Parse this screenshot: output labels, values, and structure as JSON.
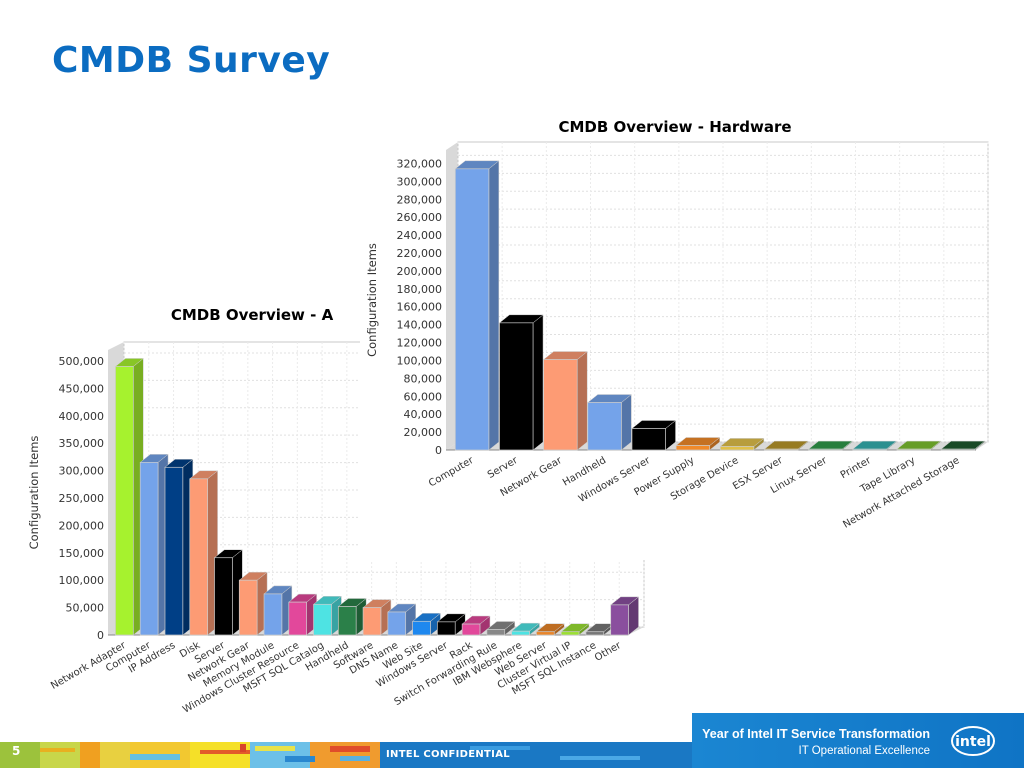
{
  "slide": {
    "title": "CMDB Survey",
    "page_number": "5",
    "confidential_label": "INTEL CONFIDENTIAL",
    "tagline_main": "Year of Intel IT Service Transformation",
    "tagline_sub": "IT Operational Excellence",
    "logo_text": "intel",
    "title_color": "#0b6cc1"
  },
  "chart_data": [
    {
      "id": "all",
      "type": "bar",
      "title": "CMDB Overview - A",
      "xlabel": "",
      "ylabel": "Configuration Items",
      "ylim": [
        0,
        520000
      ],
      "yticks": [
        0,
        50000,
        100000,
        150000,
        200000,
        250000,
        300000,
        350000,
        400000,
        450000,
        500000
      ],
      "ytick_labels": [
        "0",
        "50,000",
        "100,000",
        "150,000",
        "200,000",
        "250,000",
        "300,000",
        "350,000",
        "400,000",
        "450,000",
        "500,000"
      ],
      "grid": true,
      "style": "3d",
      "categories": [
        "Network Adapter",
        "Computer",
        "IP Address",
        "Disk",
        "Server",
        "Network Gear",
        "Memory Module",
        "Windows Cluster Resource",
        "MSFT SQL Catalog",
        "Handheld",
        "Software",
        "DNS Name",
        "Web Site",
        "Windows Server",
        "Rack",
        "Switch Forwarding Rule",
        "IBM Websphere",
        "Web Server",
        "Cluster Virtual IP",
        "MSFT SQL Instance",
        "Other"
      ],
      "values": [
        490000,
        315000,
        306000,
        285000,
        141000,
        100000,
        75000,
        60000,
        56000,
        52000,
        50000,
        42000,
        25000,
        24000,
        20000,
        10000,
        7000,
        6000,
        6000,
        6000,
        55000
      ],
      "colors": [
        "#a6f22e",
        "#74a3ea",
        "#003f86",
        "#fd9b74",
        "#000000",
        "#fd9b74",
        "#74a3ea",
        "#e2489b",
        "#4ee3e3",
        "#2b8049",
        "#fd9b74",
        "#74a3ea",
        "#1e88ef",
        "#000000",
        "#e2489b",
        "#888888",
        "#4ee3e3",
        "#e8852a",
        "#9be033",
        "#777777",
        "#8a4f9e"
      ]
    },
    {
      "id": "hardware",
      "type": "bar",
      "title": "CMDB Overview - Hardware",
      "xlabel": "",
      "ylabel": "Configuration Items",
      "ylim": [
        0,
        335000
      ],
      "yticks": [
        0,
        20000,
        40000,
        60000,
        80000,
        100000,
        120000,
        140000,
        160000,
        180000,
        200000,
        220000,
        240000,
        260000,
        280000,
        300000,
        320000
      ],
      "ytick_labels": [
        "0",
        "20,000",
        "40,000",
        "60,000",
        "80,000",
        "100,000",
        "120,000",
        "140,000",
        "160,000",
        "180,000",
        "200,000",
        "220,000",
        "240,000",
        "260,000",
        "280,000",
        "300,000",
        "320,000"
      ],
      "grid": true,
      "style": "3d",
      "categories": [
        "Computer",
        "Server",
        "Network Gear",
        "Handheld",
        "Windows Server",
        "Power Supply",
        "Storage Device",
        "ESX Server",
        "Linux Server",
        "Printer",
        "Tape Library",
        "Network Attached Storage"
      ],
      "values": [
        314000,
        142000,
        101000,
        53000,
        24000,
        5000,
        4000,
        1000,
        1000,
        1000,
        1000,
        1000
      ],
      "colors": [
        "#74a3ea",
        "#000000",
        "#fd9b74",
        "#74a3ea",
        "#000000",
        "#f08a2a",
        "#e0c04a",
        "#b8962a",
        "#2f9a4a",
        "#35b0b0",
        "#7cbf2e",
        "#1f5a2e"
      ]
    }
  ]
}
